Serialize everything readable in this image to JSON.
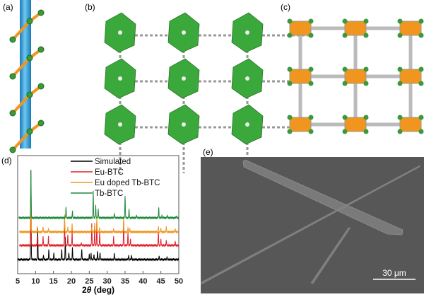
{
  "panels": {
    "a": {
      "label": "(a)"
    },
    "b": {
      "label": "(b)"
    },
    "c": {
      "label": "(c)"
    },
    "d": {
      "label": "(d)"
    },
    "e": {
      "label": "(e)",
      "scale_bar": "30 μm"
    }
  },
  "colors": {
    "green": "#3a9a3a",
    "orange": "#f0961e",
    "blue": "#2a9ad8",
    "sem_bg": "#555555",
    "red": "#e0202a",
    "black": "#000000",
    "dark_green": "#1e8a3a"
  },
  "chart_data": {
    "type": "line",
    "title": "",
    "xlabel_prefix": "2",
    "xlabel_theta": "θ",
    "xlabel_suffix": " (deg)",
    "ylabel": "",
    "xlim": [
      5,
      50
    ],
    "xticks": [
      "5",
      "10",
      "15",
      "20",
      "25",
      "30",
      "35",
      "40",
      "45",
      "50"
    ],
    "legend_position": "top-right",
    "series": [
      {
        "name": "Simulated",
        "color": "#000000",
        "offset": 0,
        "start": 5,
        "peaks": [
          [
            8.7,
            1.0
          ],
          [
            10.6,
            0.35
          ],
          [
            12.2,
            0.05
          ],
          [
            13.7,
            0.12
          ],
          [
            15.1,
            0.08
          ],
          [
            17.3,
            0.12
          ],
          [
            18.3,
            0.26
          ],
          [
            19.3,
            0.08
          ],
          [
            20.3,
            0.14
          ],
          [
            22.9,
            0.12
          ],
          [
            25.0,
            0.06
          ],
          [
            25.5,
            0.07
          ],
          [
            26.3,
            0.06
          ],
          [
            27.3,
            0.1
          ],
          [
            28.0,
            0.08
          ],
          [
            32.0,
            0.07
          ],
          [
            36.0,
            0.05
          ],
          [
            36.8,
            0.05
          ],
          [
            44.5,
            0.04
          ],
          [
            46.7,
            0.03
          ]
        ]
      },
      {
        "name": "Eu-BTC",
        "color": "#e0202a",
        "offset": 1,
        "start": 5.5,
        "peaks": [
          [
            8.7,
            0.5
          ],
          [
            10.5,
            0.1
          ],
          [
            12.1,
            0.1
          ],
          [
            13.6,
            0.1
          ],
          [
            18.1,
            0.3
          ],
          [
            19.0,
            0.12
          ],
          [
            20.2,
            0.16
          ],
          [
            22.8,
            0.03
          ],
          [
            25.7,
            0.25
          ],
          [
            26.5,
            0.2
          ],
          [
            27.1,
            0.28
          ],
          [
            27.9,
            0.15
          ],
          [
            31.8,
            0.1
          ],
          [
            34.6,
            0.3
          ],
          [
            35.8,
            0.15
          ],
          [
            36.5,
            0.07
          ],
          [
            44.3,
            0.15
          ],
          [
            45.0,
            0.07
          ],
          [
            46.5,
            0.06
          ],
          [
            49.0,
            0.05
          ]
        ]
      },
      {
        "name": "Eu doped Tb-BTC",
        "color": "#f0961e",
        "offset": 2,
        "start": 5.5,
        "peaks": [
          [
            8.7,
            0.6
          ],
          [
            10.5,
            0.06
          ],
          [
            12.1,
            0.06
          ],
          [
            13.6,
            0.04
          ],
          [
            18.1,
            0.2
          ],
          [
            19.0,
            0.05
          ],
          [
            20.2,
            0.09
          ],
          [
            25.7,
            0.06
          ],
          [
            26.5,
            0.1
          ],
          [
            27.1,
            0.16
          ],
          [
            27.9,
            0.05
          ],
          [
            31.8,
            0.04
          ],
          [
            34.6,
            0.16
          ],
          [
            35.8,
            0.05
          ],
          [
            36.3,
            0.04
          ],
          [
            44.3,
            0.06
          ],
          [
            45.0,
            0.04
          ],
          [
            46.5,
            0.06
          ],
          [
            49.0,
            0.04
          ]
        ]
      },
      {
        "name": "Tb-BTC",
        "color": "#1e8a3a",
        "offset": 3,
        "start": 5.3,
        "peaks": [
          [
            8.7,
            0.55
          ],
          [
            18.5,
            0.12
          ],
          [
            20.3,
            0.08
          ],
          [
            26.1,
            0.3
          ],
          [
            26.8,
            0.14
          ],
          [
            27.5,
            0.1
          ],
          [
            32.0,
            0.05
          ],
          [
            35.0,
            0.25
          ],
          [
            36.1,
            0.1
          ],
          [
            38.2,
            0.03
          ],
          [
            44.4,
            0.12
          ],
          [
            45.3,
            0.03
          ],
          [
            46.8,
            0.03
          ],
          [
            49.3,
            0.02
          ]
        ]
      }
    ]
  }
}
